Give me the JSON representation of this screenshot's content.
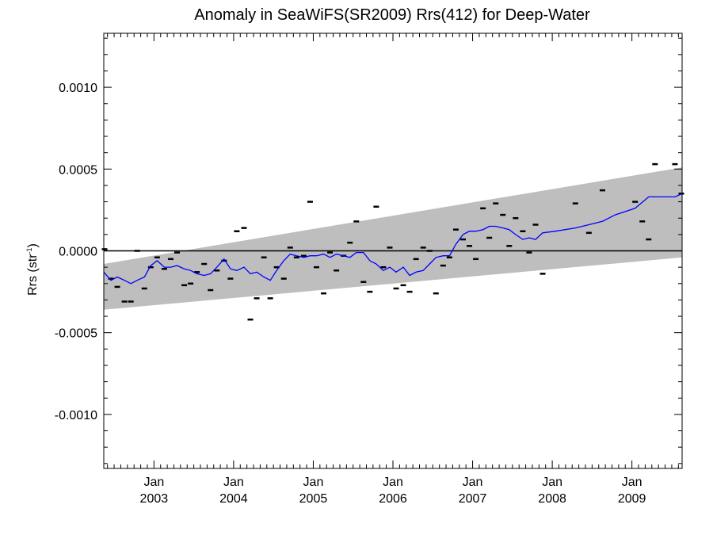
{
  "chart_data": {
    "type": "line",
    "title": "Anomaly in SeaWiFS(SR2009) Rrs(412) for Deep-Water",
    "ylabel_main": "Rrs (str",
    "ylabel_sup": "-1",
    "ylabel_close": ")",
    "xlabel": "",
    "ylim": [
      -0.00133,
      0.00133
    ],
    "xlim_year": [
      2002.37,
      2009.63
    ],
    "y_ticks": [
      {
        "value": 0.001,
        "label": "0.0010"
      },
      {
        "value": 0.0005,
        "label": "0.0005"
      },
      {
        "value": 0.0,
        "label": "0.0000"
      },
      {
        "value": -0.0005,
        "label": "-0.0005"
      },
      {
        "value": -0.001,
        "label": "-0.0010"
      }
    ],
    "x_ticks": [
      {
        "value": 2003.0,
        "month": "Jan",
        "year": "2003"
      },
      {
        "value": 2004.0,
        "month": "Jan",
        "year": "2004"
      },
      {
        "value": 2005.0,
        "month": "Jan",
        "year": "2005"
      },
      {
        "value": 2006.0,
        "month": "Jan",
        "year": "2006"
      },
      {
        "value": 2007.0,
        "month": "Jan",
        "year": "2007"
      },
      {
        "value": 2008.0,
        "month": "Jan",
        "year": "2008"
      },
      {
        "value": 2009.0,
        "month": "Jan",
        "year": "2009"
      }
    ],
    "zero_line": 0.0,
    "uncertainty_band": {
      "color": "#bebebe",
      "start": {
        "x": 2002.37,
        "low": -0.00036,
        "high": -8e-05
      },
      "end": {
        "x": 2009.63,
        "low": -4e-05,
        "high": 0.00051
      }
    },
    "monthly_anomalies": {
      "color": "#000000",
      "x": [
        2002.38,
        2002.46,
        2002.54,
        2002.63,
        2002.71,
        2002.79,
        2002.88,
        2002.96,
        2003.04,
        2003.13,
        2003.21,
        2003.29,
        2003.38,
        2003.46,
        2003.54,
        2003.63,
        2003.71,
        2003.79,
        2003.88,
        2003.96,
        2004.04,
        2004.13,
        2004.21,
        2004.29,
        2004.38,
        2004.46,
        2004.54,
        2004.63,
        2004.71,
        2004.79,
        2004.88,
        2004.96,
        2005.04,
        2005.13,
        2005.21,
        2005.29,
        2005.38,
        2005.46,
        2005.54,
        2005.63,
        2005.71,
        2005.79,
        2005.88,
        2005.96,
        2006.04,
        2006.13,
        2006.21,
        2006.29,
        2006.38,
        2006.46,
        2006.54,
        2006.63,
        2006.71,
        2006.79,
        2006.88,
        2006.96,
        2007.04,
        2007.13,
        2007.21,
        2007.29,
        2007.38,
        2007.46,
        2007.54,
        2007.63,
        2007.71,
        2007.79,
        2007.88,
        2008.29,
        2008.46,
        2008.63,
        2009.04,
        2009.13,
        2009.21,
        2009.29,
        2009.54,
        2009.62
      ],
      "y": [
        1e-05,
        -0.00017,
        -0.00022,
        -0.00031,
        -0.00031,
        0.0,
        -0.00023,
        -0.0001,
        -4e-05,
        -0.00011,
        -5e-05,
        -1e-05,
        -0.00021,
        -0.0002,
        -0.00013,
        -8e-05,
        -0.00024,
        -0.00012,
        -6e-05,
        -0.00017,
        0.00012,
        0.00014,
        -0.00042,
        -0.00029,
        -4e-05,
        -0.00029,
        -0.0001,
        -0.00017,
        2e-05,
        -4e-05,
        -3e-05,
        0.0003,
        -0.0001,
        -0.00026,
        -1e-05,
        -0.00012,
        -3e-05,
        5e-05,
        0.00018,
        -0.00019,
        -0.00025,
        0.00027,
        -0.0001,
        2e-05,
        -0.00023,
        -0.00021,
        -0.00025,
        -5e-05,
        2e-05,
        0.0,
        -0.00026,
        -9e-05,
        -4e-05,
        0.00013,
        7e-05,
        3e-05,
        -5e-05,
        0.00026,
        8e-05,
        0.00029,
        0.00022,
        3e-05,
        0.0002,
        0.00012,
        -1e-05,
        0.00016,
        -0.00014,
        0.00029,
        0.00011,
        0.00037,
        0.0003,
        0.00018,
        7e-05,
        0.00053,
        0.00053,
        0.00035
      ]
    },
    "running_mean": {
      "color": "#0000ff",
      "x": [
        2002.37,
        2002.46,
        2002.54,
        2002.63,
        2002.71,
        2002.79,
        2002.88,
        2002.96,
        2003.04,
        2003.13,
        2003.21,
        2003.29,
        2003.38,
        2003.46,
        2003.54,
        2003.63,
        2003.71,
        2003.79,
        2003.88,
        2003.96,
        2004.04,
        2004.13,
        2004.21,
        2004.29,
        2004.38,
        2004.46,
        2004.54,
        2004.63,
        2004.71,
        2004.79,
        2004.88,
        2004.96,
        2005.04,
        2005.13,
        2005.21,
        2005.29,
        2005.38,
        2005.46,
        2005.54,
        2005.63,
        2005.71,
        2005.79,
        2005.88,
        2005.96,
        2006.04,
        2006.13,
        2006.21,
        2006.29,
        2006.38,
        2006.46,
        2006.54,
        2006.63,
        2006.71,
        2006.79,
        2006.88,
        2006.96,
        2007.04,
        2007.13,
        2007.21,
        2007.29,
        2007.38,
        2007.46,
        2007.54,
        2007.63,
        2007.71,
        2007.79,
        2007.88,
        2008.04,
        2008.29,
        2008.46,
        2008.63,
        2008.79,
        2009.04,
        2009.21,
        2009.38,
        2009.54,
        2009.63
      ],
      "y": [
        -0.00013,
        -0.00018,
        -0.00016,
        -0.00018,
        -0.0002,
        -0.00018,
        -0.00016,
        -9e-05,
        -6e-05,
        -0.0001,
        -0.0001,
        -9e-05,
        -0.00011,
        -0.00012,
        -0.00014,
        -0.00015,
        -0.00014,
        -0.0001,
        -5e-05,
        -0.00011,
        -0.00012,
        -0.0001,
        -0.00014,
        -0.00013,
        -0.00016,
        -0.00018,
        -0.00012,
        -6e-05,
        -2e-05,
        -3e-05,
        -4e-05,
        -3e-05,
        -3e-05,
        -2e-05,
        -4e-05,
        -2e-05,
        -3e-05,
        -4e-05,
        -1e-05,
        -1e-05,
        -6e-05,
        -8e-05,
        -0.00012,
        -0.0001,
        -0.00013,
        -0.0001,
        -0.00015,
        -0.00013,
        -0.00012,
        -8e-05,
        -4e-05,
        -3e-05,
        -3e-05,
        4e-05,
        0.0001,
        0.00012,
        0.00012,
        0.00013,
        0.00015,
        0.00015,
        0.00014,
        0.00013,
        0.0001,
        7e-05,
        8e-05,
        7e-05,
        0.00011,
        0.00012,
        0.00014,
        0.00016,
        0.00018,
        0.00022,
        0.00026,
        0.00033,
        0.00033,
        0.00033,
        0.00035
      ]
    },
    "grid": false,
    "legend": "none"
  }
}
